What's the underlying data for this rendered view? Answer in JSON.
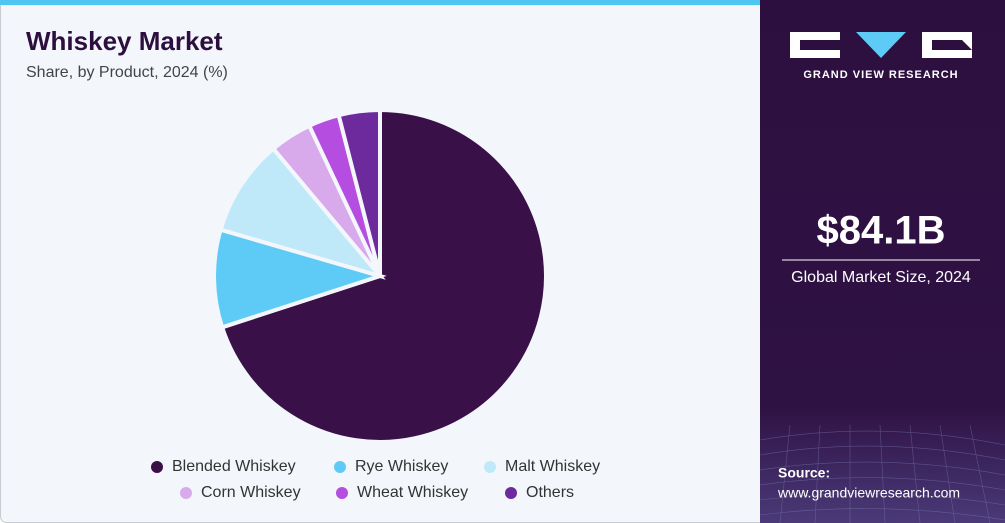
{
  "chart_data": {
    "type": "pie",
    "title": "Whiskey Market",
    "subtitle": "Share, by Product, 2024 (%)",
    "categories": [
      "Blended Whiskey",
      "Rye Whiskey",
      "Malt Whiskey",
      "Corn Whiskey",
      "Wheat Whiskey",
      "Others"
    ],
    "values": [
      70,
      9.5,
      9.4,
      4.1,
      3,
      4
    ],
    "colors": [
      "#3a1048",
      "#5ecbf6",
      "#bfe9f9",
      "#d8aaec",
      "#b44de0",
      "#6d2a9c"
    ]
  },
  "sidebar": {
    "brand": "GRAND VIEW RESEARCH",
    "market_size": "$84.1B",
    "market_size_label": "Global Market Size, 2024",
    "source_label": "Source:",
    "source_url": "www.grandviewresearch.com"
  }
}
